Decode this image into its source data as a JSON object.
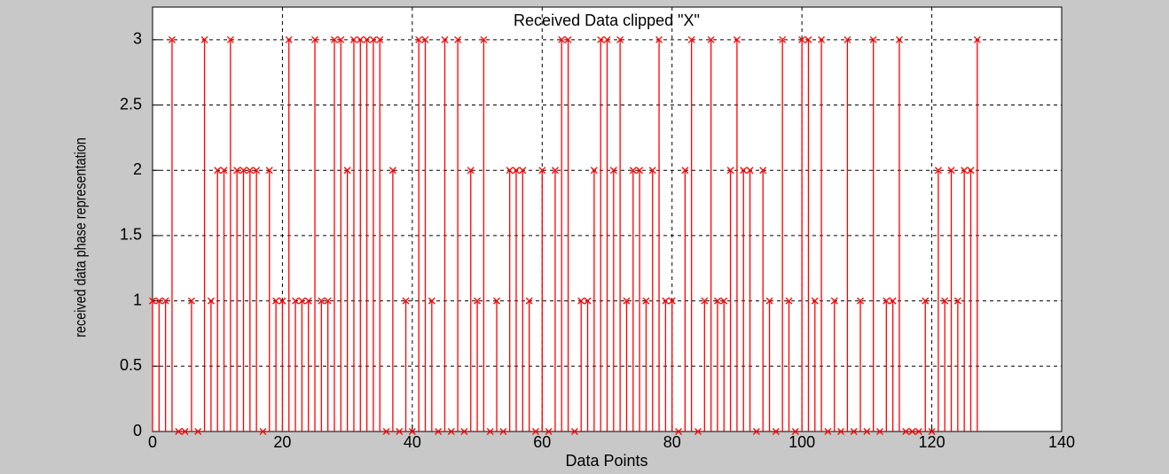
{
  "chart_data": {
    "type": "stem",
    "title": "Received Data clipped \"X\"",
    "x_label": "Data Points",
    "y_label": "received data phase representation",
    "x": [
      0,
      1,
      2,
      3,
      4,
      5,
      6,
      7,
      8,
      9,
      10,
      11,
      12,
      13,
      14,
      15,
      16,
      17,
      18,
      19,
      20,
      21,
      22,
      23,
      24,
      25,
      26,
      27,
      28,
      29,
      30,
      31,
      32,
      33,
      34,
      35,
      36,
      37,
      38,
      39,
      40,
      41,
      42,
      43,
      44,
      45,
      46,
      47,
      48,
      49,
      50,
      51,
      52,
      53,
      54,
      55,
      56,
      57,
      58,
      59,
      60,
      61,
      62,
      63,
      64,
      65,
      66,
      67,
      68,
      69,
      70,
      71,
      72,
      73,
      74,
      75,
      76,
      77,
      78,
      79,
      80,
      81,
      82,
      83,
      84,
      85,
      86,
      87,
      88,
      89,
      90,
      91,
      92,
      93,
      94,
      95,
      96,
      97,
      98,
      99,
      100,
      101,
      102,
      103,
      104,
      105,
      106,
      107,
      108,
      109,
      110,
      111,
      112,
      113,
      114,
      115,
      116,
      117,
      118,
      119,
      120,
      121,
      122,
      123,
      124,
      125,
      126,
      127
    ],
    "values": [
      1,
      1,
      1,
      3,
      0,
      0,
      1,
      0,
      3,
      1,
      2,
      2,
      3,
      2,
      2,
      2,
      2,
      0,
      2,
      1,
      1,
      3,
      1,
      1,
      1,
      3,
      1,
      1,
      3,
      3,
      2,
      3,
      3,
      3,
      3,
      3,
      0,
      2,
      0,
      1,
      0,
      3,
      3,
      1,
      0,
      3,
      0,
      3,
      0,
      2,
      1,
      3,
      0,
      1,
      0,
      2,
      2,
      2,
      1,
      0,
      2,
      0,
      2,
      3,
      3,
      0,
      1,
      1,
      2,
      3,
      3,
      2,
      3,
      1,
      2,
      2,
      1,
      2,
      3,
      1,
      1,
      0,
      2,
      3,
      0,
      1,
      3,
      1,
      1,
      2,
      3,
      2,
      2,
      0,
      2,
      1,
      0,
      3,
      1,
      0,
      3,
      3,
      1,
      3,
      0,
      1,
      0,
      3,
      0,
      1,
      0,
      3,
      0,
      1,
      1,
      3,
      0,
      0,
      0,
      1,
      0,
      2,
      1,
      2,
      1,
      2,
      2,
      3
    ],
    "color": "#ff0000",
    "marker": "x",
    "xlim": [
      0,
      140
    ],
    "xticks": [
      0,
      20,
      40,
      60,
      80,
      100,
      120,
      140
    ],
    "ylim": [
      0,
      3.25
    ],
    "yticks": [
      0,
      0.5,
      1,
      1.5,
      2,
      2.5,
      3
    ],
    "grid": true
  }
}
